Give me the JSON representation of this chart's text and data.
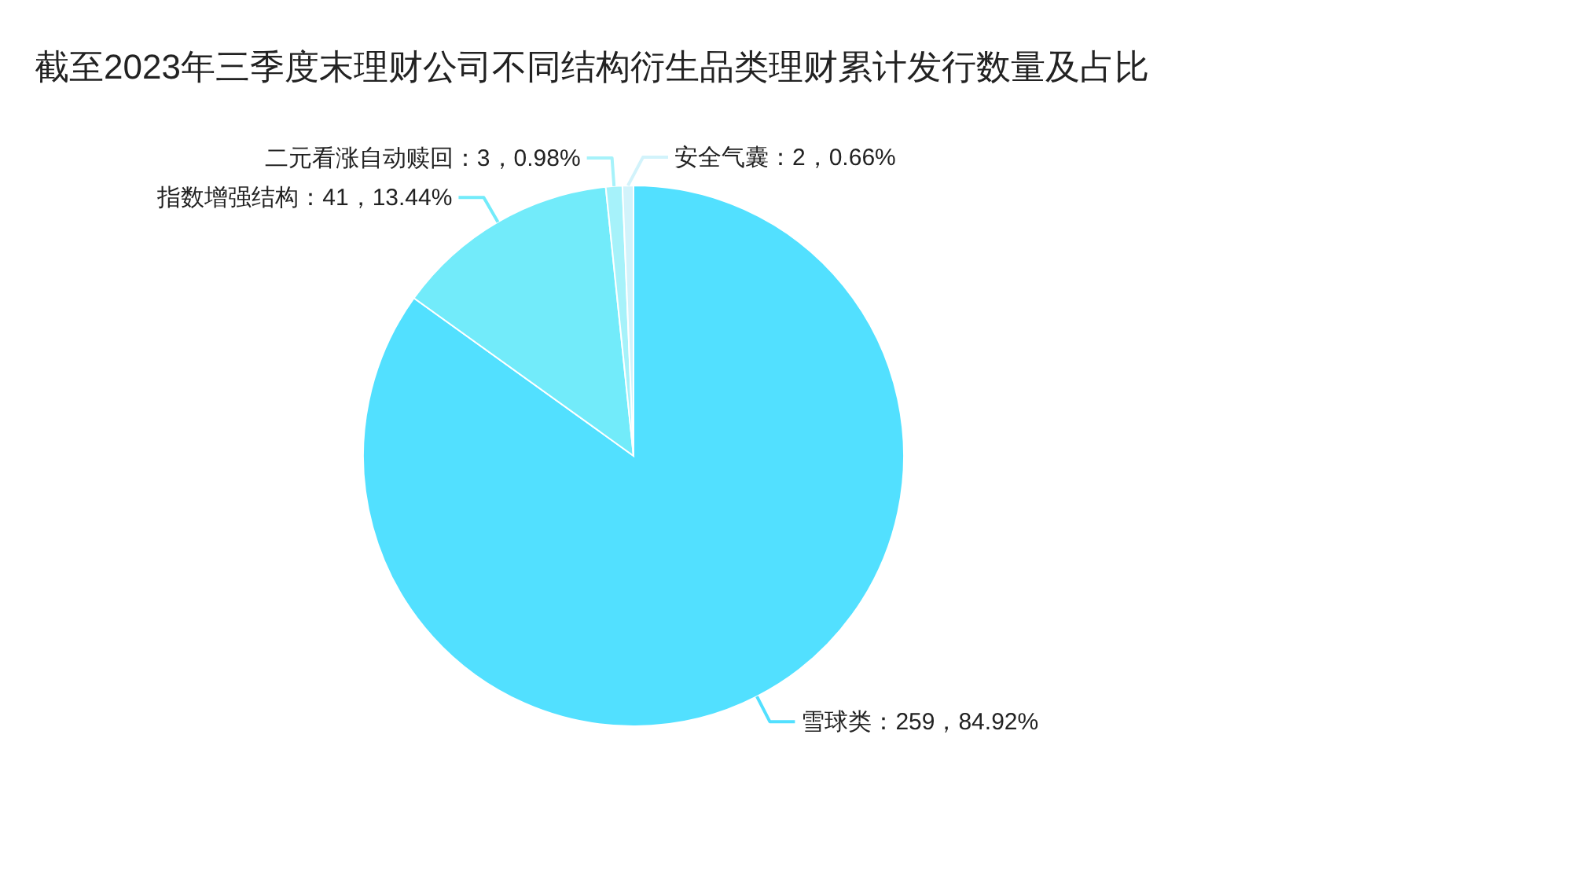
{
  "chart_data": {
    "type": "pie",
    "title": "截至2023年三季度末理财公司不同结构衍生品类理财累计发行数量及占比",
    "categories": [
      "雪球类",
      "指数增强结构",
      "二元看涨自动赎回",
      "安全气囊"
    ],
    "values": [
      259,
      41,
      3,
      2
    ],
    "value_labels": [
      "259，84.92%",
      "41，13.44%",
      "3，0.98%",
      "2，0.66%"
    ],
    "colors": [
      "#52e0ff",
      "#72ebfa",
      "#a6f2fa",
      "#d2f3fb"
    ]
  }
}
